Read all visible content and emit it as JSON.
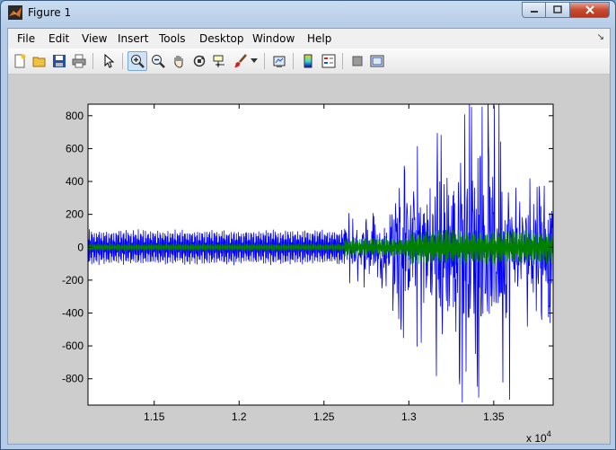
{
  "window": {
    "title": "Figure 1"
  },
  "menu": [
    "File",
    "Edit",
    "View",
    "Insert",
    "Tools",
    "Desktop",
    "Window",
    "Help"
  ],
  "toolbar_icons": [
    "new-figure-icon",
    "open-file-icon",
    "save-icon",
    "print-icon",
    "pointer-icon",
    "zoom-in-icon",
    "zoom-out-icon",
    "pan-icon",
    "rotate-3d-icon",
    "data-cursor-icon",
    "brush-icon",
    "brush-dropdown-icon",
    "link-plot-icon",
    "colorbar-icon",
    "legend-icon",
    "hide-plot-tools-icon",
    "show-plot-tools-icon"
  ],
  "chart_data": {
    "type": "line",
    "title": "",
    "xlabel": "",
    "ylabel": "",
    "x_multiplier_label": "x 10",
    "x_multiplier_exponent": "4",
    "xlim": [
      1.111,
      1.385
    ],
    "ylim": [
      -960,
      870
    ],
    "x_ticks": [
      "1.15",
      "1.2",
      "1.25",
      "1.3",
      "1.35"
    ],
    "x_tick_values": [
      1.15,
      1.2,
      1.25,
      1.3,
      1.35
    ],
    "y_ticks": [
      "800",
      "600",
      "400",
      "200",
      "0",
      "-200",
      "-400",
      "-600",
      "-800"
    ],
    "y_tick_values": [
      800,
      600,
      400,
      200,
      0,
      -200,
      -400,
      -600,
      -800
    ],
    "grid": false,
    "series": [
      {
        "color": "#0000ff",
        "segments": [
          {
            "x_start": 1.111,
            "x_end": 1.262,
            "amplitude": 110
          },
          {
            "x_start": 1.262,
            "x_end": 1.29,
            "amplitude": 250
          },
          {
            "x_start": 1.29,
            "x_end": 1.315,
            "amplitude": 650
          },
          {
            "x_start": 1.315,
            "x_end": 1.36,
            "amplitude": 960
          },
          {
            "x_start": 1.36,
            "x_end": 1.385,
            "amplitude": 500
          }
        ]
      },
      {
        "color": "#008000",
        "segments": [
          {
            "x_start": 1.111,
            "x_end": 1.262,
            "amplitude": 25
          },
          {
            "x_start": 1.262,
            "x_end": 1.3,
            "amplitude": 60
          },
          {
            "x_start": 1.3,
            "x_end": 1.385,
            "amplitude": 110
          }
        ]
      }
    ]
  }
}
